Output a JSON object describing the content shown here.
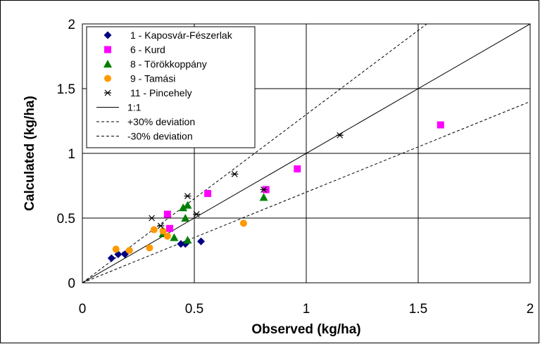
{
  "chart_data": {
    "type": "scatter",
    "title": "",
    "xlabel": "Observed (kg/ha)",
    "ylabel": "Calculated (kg/ha)",
    "xlim": [
      0,
      2
    ],
    "ylim": [
      0,
      2
    ],
    "x_ticks": [
      "0",
      "0.5",
      "1",
      "1.5",
      "2"
    ],
    "y_ticks": [
      "0",
      "0.5",
      "1",
      "1.5",
      "2"
    ],
    "grid": true,
    "legend_position": "top-left",
    "series": [
      {
        "name": "1 - Kaposvár-Fészerlak",
        "marker": "diamond",
        "color": "#000080",
        "points": [
          [
            0.13,
            0.19
          ],
          [
            0.16,
            0.22
          ],
          [
            0.19,
            0.22
          ],
          [
            0.44,
            0.3
          ],
          [
            0.46,
            0.3
          ],
          [
            0.53,
            0.32
          ]
        ]
      },
      {
        "name": "6 - Kurd",
        "marker": "square",
        "color": "#ff00ff",
        "points": [
          [
            0.38,
            0.53
          ],
          [
            0.39,
            0.42
          ],
          [
            0.56,
            0.69
          ],
          [
            0.82,
            0.72
          ],
          [
            0.96,
            0.88
          ],
          [
            1.6,
            1.22
          ]
        ]
      },
      {
        "name": "8 - Törökkoppány",
        "marker": "triangle",
        "color": "#008000",
        "points": [
          [
            0.36,
            0.38
          ],
          [
            0.41,
            0.35
          ],
          [
            0.45,
            0.58
          ],
          [
            0.46,
            0.5
          ],
          [
            0.47,
            0.6
          ],
          [
            0.47,
            0.33
          ],
          [
            0.81,
            0.66
          ]
        ]
      },
      {
        "name": "9 - Tamási",
        "marker": "circle",
        "color": "#ff9900",
        "points": [
          [
            0.15,
            0.26
          ],
          [
            0.21,
            0.25
          ],
          [
            0.3,
            0.27
          ],
          [
            0.32,
            0.41
          ],
          [
            0.36,
            0.4
          ],
          [
            0.38,
            0.36
          ],
          [
            0.72,
            0.46
          ]
        ]
      },
      {
        "name": "11 - Pincehely",
        "marker": "asterisk",
        "color": "#000000",
        "points": [
          [
            0.31,
            0.5
          ],
          [
            0.35,
            0.44
          ],
          [
            0.47,
            0.67
          ],
          [
            0.51,
            0.53
          ],
          [
            0.68,
            0.84
          ],
          [
            0.81,
            0.72
          ],
          [
            1.15,
            1.14
          ]
        ]
      }
    ],
    "reference_lines": [
      {
        "name": "1:1",
        "style": "solid",
        "slope": 1.0
      },
      {
        "name": "+30% deviation",
        "style": "dashed",
        "slope": 1.3
      },
      {
        "name": "-30% deviation",
        "style": "dashed",
        "slope": 0.7
      }
    ]
  }
}
